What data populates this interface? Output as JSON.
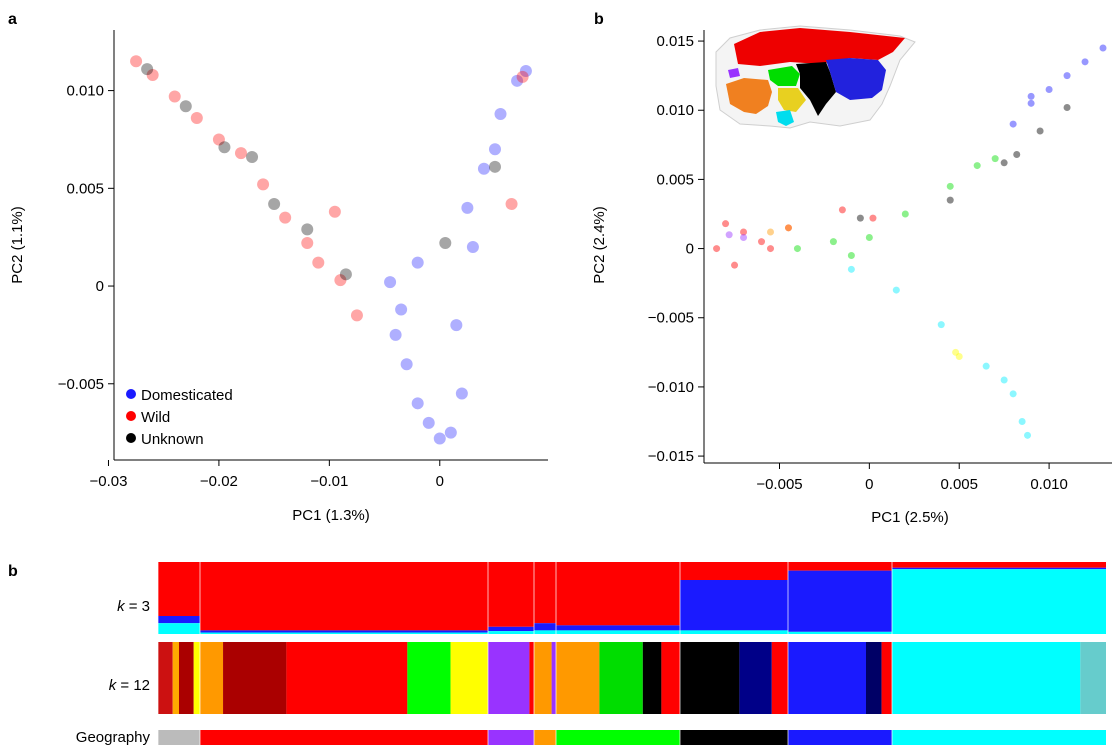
{
  "panels": {
    "a_label": "a",
    "b_label": "b",
    "c_label": "b"
  },
  "chart_data": [
    {
      "panel": "a",
      "type": "scatter",
      "xlabel": "PC1 (1.3%)",
      "ylabel": "PC2 (1.1%)",
      "xlim": [
        -0.0295,
        0.0098
      ],
      "ylim": [
        -0.0089,
        0.0131
      ],
      "xticks": [
        -0.03,
        -0.02,
        -0.01,
        0
      ],
      "xtick_labels": [
        "−0.03",
        "−0.02",
        "−0.01",
        "0"
      ],
      "yticks": [
        0.01,
        0.005,
        0,
        -0.005
      ],
      "ytick_labels": [
        "0.010",
        "0.005",
        "0",
        "−0.005"
      ],
      "legend_position": "bottom-left",
      "series": [
        {
          "name": "Domesticated",
          "color": "#1a1aff",
          "values": [
            [
              -0.004,
              -0.0025
            ],
            [
              -0.003,
              -0.004
            ],
            [
              -0.002,
              -0.006
            ],
            [
              -0.001,
              -0.007
            ],
            [
              0.0,
              -0.0078
            ],
            [
              0.001,
              -0.0075
            ],
            [
              0.002,
              -0.0055
            ],
            [
              0.003,
              0.002
            ],
            [
              0.004,
              0.006
            ],
            [
              0.0055,
              0.0088
            ],
            [
              0.007,
              0.0105
            ],
            [
              0.0078,
              0.011
            ],
            [
              -0.002,
              0.0012
            ],
            [
              0.0015,
              -0.002
            ],
            [
              -0.0045,
              0.0002
            ],
            [
              0.005,
              0.007
            ],
            [
              0.0025,
              0.004
            ],
            [
              -0.0035,
              -0.0012
            ]
          ]
        },
        {
          "name": "Wild",
          "color": "#ff0000",
          "values": [
            [
              -0.0275,
              0.0115
            ],
            [
              -0.026,
              0.0108
            ],
            [
              -0.024,
              0.0097
            ],
            [
              -0.022,
              0.0086
            ],
            [
              -0.02,
              0.0075
            ],
            [
              -0.018,
              0.0068
            ],
            [
              -0.016,
              0.0052
            ],
            [
              -0.014,
              0.0035
            ],
            [
              -0.012,
              0.0022
            ],
            [
              -0.011,
              0.0012
            ],
            [
              -0.009,
              0.0003
            ],
            [
              -0.0075,
              -0.0015
            ],
            [
              -0.0095,
              0.0038
            ],
            [
              0.0065,
              0.0042
            ],
            [
              0.0075,
              0.0107
            ]
          ]
        },
        {
          "name": "Unknown",
          "color": "#000000",
          "values": [
            [
              -0.0265,
              0.0111
            ],
            [
              -0.023,
              0.0092
            ],
            [
              -0.0195,
              0.0071
            ],
            [
              -0.017,
              0.0066
            ],
            [
              -0.015,
              0.0042
            ],
            [
              -0.012,
              0.0029
            ],
            [
              -0.0085,
              0.0006
            ],
            [
              0.0005,
              0.0022
            ],
            [
              0.005,
              0.0061
            ]
          ]
        }
      ]
    },
    {
      "panel": "b",
      "type": "scatter",
      "xlabel": "PC1 (2.5%)",
      "ylabel": "PC2 (2.4%)",
      "xlim": [
        -0.0092,
        0.0135
      ],
      "ylim": [
        -0.0155,
        0.0158
      ],
      "xticks": [
        -0.005,
        0,
        0.005,
        0.01
      ],
      "xtick_labels": [
        "−0.005",
        "0",
        "0.005",
        "0.010"
      ],
      "yticks": [
        0.015,
        0.01,
        0.005,
        0,
        -0.005,
        -0.01,
        -0.015
      ],
      "ytick_labels": [
        "0.015",
        "0.010",
        "0.005",
        "0",
        "−0.005",
        "−0.010",
        "−0.015"
      ],
      "series": [
        {
          "color": "#ff0000",
          "values": [
            [
              -0.0085,
              0.0
            ],
            [
              -0.008,
              0.0018
            ],
            [
              -0.007,
              0.0012
            ],
            [
              -0.006,
              0.0005
            ],
            [
              -0.0075,
              -0.0012
            ],
            [
              -0.0055,
              0.0
            ],
            [
              -0.0045,
              0.0015
            ],
            [
              -0.0015,
              0.0028
            ],
            [
              0.0002,
              0.0022
            ]
          ]
        },
        {
          "color": "#1a1aff",
          "values": [
            [
              0.008,
              0.009
            ],
            [
              0.009,
              0.0105
            ],
            [
              0.01,
              0.0115
            ],
            [
              0.011,
              0.0125
            ],
            [
              0.012,
              0.0135
            ],
            [
              0.013,
              0.0145
            ],
            [
              0.009,
              0.011
            ]
          ]
        },
        {
          "color": "#000000",
          "values": [
            [
              0.0075,
              0.0062
            ],
            [
              0.0082,
              0.0068
            ],
            [
              0.0095,
              0.0085
            ],
            [
              0.011,
              0.0102
            ],
            [
              0.0045,
              0.0035
            ],
            [
              -0.0005,
              0.0022
            ]
          ]
        },
        {
          "color": "#00dd00",
          "values": [
            [
              -0.004,
              0.0
            ],
            [
              -0.002,
              0.0005
            ],
            [
              -0.001,
              -0.0005
            ],
            [
              0.0,
              0.0008
            ],
            [
              0.002,
              0.0025
            ],
            [
              0.0045,
              0.0045
            ],
            [
              0.006,
              0.006
            ],
            [
              0.007,
              0.0065
            ]
          ]
        },
        {
          "color": "#00eeff",
          "values": [
            [
              0.0075,
              -0.0095
            ],
            [
              0.008,
              -0.0105
            ],
            [
              0.0085,
              -0.0125
            ],
            [
              0.0088,
              -0.0135
            ],
            [
              0.0065,
              -0.0085
            ],
            [
              0.004,
              -0.0055
            ],
            [
              0.0015,
              -0.003
            ],
            [
              -0.001,
              -0.0015
            ]
          ]
        },
        {
          "color": "#ff9900",
          "values": [
            [
              -0.0055,
              0.0012
            ],
            [
              -0.0045,
              0.0015
            ]
          ]
        },
        {
          "color": "#9933ff",
          "values": [
            [
              -0.0078,
              0.001
            ],
            [
              -0.007,
              0.0008
            ]
          ]
        },
        {
          "color": "#ffff00",
          "values": [
            [
              0.005,
              -0.0078
            ],
            [
              0.0048,
              -0.0075
            ]
          ]
        }
      ],
      "inset": {
        "regions": [
          {
            "color": "#ee0000"
          },
          {
            "color": "#9933ff"
          },
          {
            "color": "#00dd00"
          },
          {
            "color": "#000000"
          },
          {
            "color": "#2222dd"
          },
          {
            "color": "#f08020"
          },
          {
            "color": "#e8d020"
          },
          {
            "color": "#00ddee"
          }
        ]
      }
    },
    {
      "panel": "c",
      "type": "stacked-bar",
      "rows": [
        {
          "label": "k = 3",
          "k_prefix": "k",
          "k_suffix": " = 3"
        },
        {
          "label": "k = 12",
          "k_prefix": "k",
          "k_suffix": " = 12"
        },
        {
          "label": "Geography"
        }
      ],
      "groups": [
        {
          "geo": "#bbbbbb",
          "width": 42,
          "k3": [
            0.75,
            0.1,
            0.15
          ],
          "k12": [
            [
              "#cc1111",
              0.35
            ],
            [
              "#ffaa00",
              0.15
            ],
            [
              "#aa0000",
              0.35
            ],
            [
              "#ffff00",
              0.15
            ]
          ]
        },
        {
          "geo": "#ff0000",
          "width": 288,
          "k3": [
            0.95,
            0.03,
            0.02
          ],
          "k12": [
            [
              "#ff9900",
              0.08
            ],
            [
              "#aa0000",
              0.22
            ],
            [
              "#ff0000",
              0.42
            ],
            [
              "#00ff00",
              0.15
            ],
            [
              "#ffff00",
              0.13
            ]
          ]
        },
        {
          "geo": "#9933ff",
          "width": 46,
          "k3": [
            0.9,
            0.06,
            0.04
          ],
          "k12": [
            [
              "#9933ff",
              0.9
            ],
            [
              "#ff0000",
              0.1
            ]
          ]
        },
        {
          "geo": "#ff9900",
          "width": 22,
          "k3": [
            0.85,
            0.1,
            0.05
          ],
          "k12": [
            [
              "#ff9900",
              0.8
            ],
            [
              "#9933ff",
              0.2
            ]
          ]
        },
        {
          "geo": "#00ff00",
          "width": 124,
          "k3": [
            0.88,
            0.07,
            0.05
          ],
          "k12": [
            [
              "#ff9900",
              0.35
            ],
            [
              "#00dd00",
              0.35
            ],
            [
              "#000000",
              0.15
            ],
            [
              "#ff0000",
              0.15
            ]
          ]
        },
        {
          "geo": "#000000",
          "width": 108,
          "k3": [
            0.25,
            0.7,
            0.05
          ],
          "k12": [
            [
              "#000000",
              0.55
            ],
            [
              "#000088",
              0.3
            ],
            [
              "#ff0000",
              0.15
            ]
          ]
        },
        {
          "geo": "#1a1aff",
          "width": 104,
          "k3": [
            0.12,
            0.85,
            0.03
          ],
          "k12": [
            [
              "#1a1aff",
              0.75
            ],
            [
              "#000066",
              0.15
            ],
            [
              "#ff0000",
              0.1
            ]
          ]
        },
        {
          "geo": "#00ffff",
          "width": 214,
          "k3": [
            0.08,
            0.02,
            0.9
          ],
          "k12": [
            [
              "#00ffff",
              0.88
            ],
            [
              "#66cccc",
              0.12
            ]
          ]
        }
      ],
      "k3_colors": [
        "#ff0000",
        "#1a1aff",
        "#00ffff"
      ]
    }
  ]
}
